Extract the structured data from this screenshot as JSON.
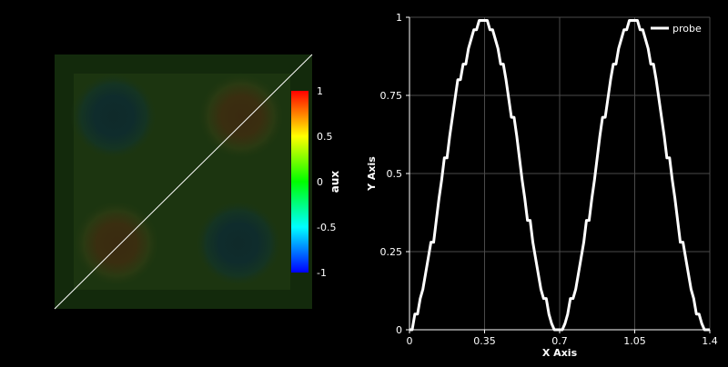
{
  "chart_data": [
    {
      "type": "heatmap",
      "description": "2D color render of field 'aux' with a white diagonal probe line",
      "colorbar": {
        "title": "aux",
        "ticks": [
          1,
          0.5,
          0,
          -0.5,
          -1
        ],
        "tick_labels": [
          "1",
          "0.5",
          "0",
          "-0.5",
          "-1"
        ],
        "range": [
          -1,
          1
        ],
        "colormap": [
          "#0000ff",
          "#00ffff",
          "#00ff00",
          "#ffff00",
          "#ff0000"
        ]
      },
      "field": {
        "pattern": "sin(2πx)·sin(2πy)-like, two warm and two cool lobes",
        "quadrants": {
          "top_left": -1,
          "top_right": 1,
          "bottom_left": 1,
          "bottom_right": -1
        }
      },
      "probe_line": {
        "color": "#ffffff",
        "direction": "bottom-left to top-right"
      }
    },
    {
      "type": "line",
      "xlabel": "X Axis",
      "ylabel": "Y Axis",
      "xlim": [
        0,
        1.4
      ],
      "ylim": [
        0,
        1
      ],
      "x_ticks": [
        0,
        0.35,
        0.7,
        1.05,
        1.4
      ],
      "x_tick_labels": [
        "0",
        "0.35",
        "0.7",
        "1.05",
        "1.4"
      ],
      "y_ticks": [
        0,
        0.25,
        0.5,
        0.75,
        1
      ],
      "y_tick_labels": [
        "0",
        "0.25",
        "0.5",
        "0.75",
        "1"
      ],
      "grid": true,
      "legend_position": "top-right",
      "series": [
        {
          "name": "probe",
          "color": "#ffffff",
          "x": [
            0,
            0.0125,
            0.025,
            0.0375,
            0.05,
            0.0625,
            0.075,
            0.0875,
            0.1,
            0.1125,
            0.125,
            0.1375,
            0.15,
            0.1625,
            0.175,
            0.1875,
            0.2,
            0.2125,
            0.225,
            0.2375,
            0.25,
            0.2625,
            0.275,
            0.2875,
            0.3,
            0.3125,
            0.325,
            0.3375,
            0.35,
            0.3625,
            0.375,
            0.3875,
            0.4,
            0.4125,
            0.425,
            0.4375,
            0.45,
            0.4625,
            0.475,
            0.4875,
            0.5,
            0.5125,
            0.525,
            0.5375,
            0.55,
            0.5625,
            0.575,
            0.5875,
            0.6,
            0.6125,
            0.625,
            0.6375,
            0.65,
            0.6625,
            0.675,
            0.6875,
            0.7,
            0.7125,
            0.725,
            0.7375,
            0.75,
            0.7625,
            0.775,
            0.7875,
            0.8,
            0.8125,
            0.825,
            0.8375,
            0.85,
            0.8625,
            0.875,
            0.8875,
            0.9,
            0.9125,
            0.925,
            0.9375,
            0.95,
            0.9625,
            0.975,
            0.9875,
            1,
            1.0125,
            1.025,
            1.0375,
            1.05,
            1.0625,
            1.075,
            1.0875,
            1.1,
            1.1125,
            1.125,
            1.1375,
            1.15,
            1.1625,
            1.175,
            1.1875,
            1.2,
            1.2125,
            1.225,
            1.2375,
            1.25,
            1.2625,
            1.275,
            1.2875,
            1.3,
            1.3125,
            1.325,
            1.3375,
            1.35,
            1.3625,
            1.375,
            1.3875,
            1.4
          ],
          "values": [
            0.0,
            0.0,
            0.05,
            0.05,
            0.1,
            0.13,
            0.18,
            0.23,
            0.28,
            0.28,
            0.35,
            0.42,
            0.48,
            0.55,
            0.55,
            0.62,
            0.68,
            0.74,
            0.8,
            0.8,
            0.85,
            0.85,
            0.9,
            0.93,
            0.96,
            0.96,
            0.99,
            0.99,
            0.99,
            0.99,
            0.96,
            0.96,
            0.93,
            0.9,
            0.85,
            0.85,
            0.8,
            0.74,
            0.68,
            0.68,
            0.62,
            0.55,
            0.48,
            0.42,
            0.35,
            0.35,
            0.28,
            0.23,
            0.18,
            0.13,
            0.1,
            0.1,
            0.05,
            0.02,
            0.0,
            0.0,
            0.0,
            0.0,
            0.02,
            0.05,
            0.1,
            0.1,
            0.13,
            0.18,
            0.23,
            0.28,
            0.35,
            0.35,
            0.42,
            0.48,
            0.55,
            0.62,
            0.68,
            0.68,
            0.74,
            0.8,
            0.85,
            0.85,
            0.9,
            0.93,
            0.96,
            0.96,
            0.99,
            0.99,
            0.99,
            0.99,
            0.96,
            0.96,
            0.93,
            0.9,
            0.85,
            0.85,
            0.8,
            0.74,
            0.68,
            0.62,
            0.55,
            0.55,
            0.48,
            0.42,
            0.35,
            0.28,
            0.28,
            0.23,
            0.18,
            0.13,
            0.1,
            0.05,
            0.05,
            0.02,
            0.0,
            0.0,
            0.0
          ]
        }
      ]
    }
  ]
}
